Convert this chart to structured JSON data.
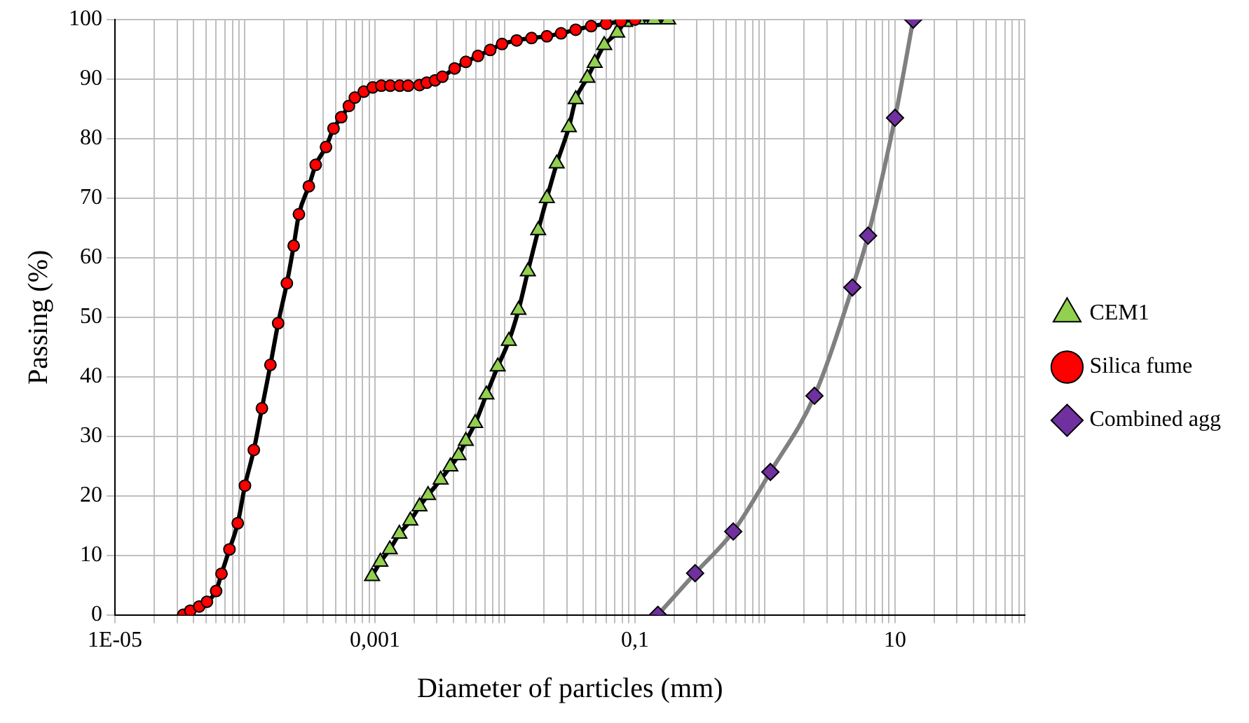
{
  "chart_data": {
    "type": "line",
    "xlabel": "Diameter of particles (mm)",
    "ylabel": "Passing (%)",
    "log": "x",
    "grid": true,
    "legend": "right",
    "xlim": [
      1e-05,
      100
    ],
    "ylim": [
      0,
      100
    ],
    "xticks": [
      {
        "value": 1e-05,
        "label": "1E-05"
      },
      {
        "value": 2e-05,
        "label": null
      },
      {
        "value": 3e-05,
        "label": null
      },
      {
        "value": 4e-05,
        "label": null
      },
      {
        "value": 5e-05,
        "label": null
      },
      {
        "value": 6e-05,
        "label": null
      },
      {
        "value": 7e-05,
        "label": null
      },
      {
        "value": 8e-05,
        "label": null
      },
      {
        "value": 9e-05,
        "label": null
      },
      {
        "value": 0.0001,
        "label": null
      },
      {
        "value": 0.0002,
        "label": null
      },
      {
        "value": 0.0003,
        "label": null
      },
      {
        "value": 0.0004,
        "label": null
      },
      {
        "value": 0.0005,
        "label": null
      },
      {
        "value": 0.0006,
        "label": null
      },
      {
        "value": 0.0007,
        "label": null
      },
      {
        "value": 0.0008,
        "label": null
      },
      {
        "value": 0.0009,
        "label": null
      },
      {
        "value": 0.001,
        "label": "0,001"
      },
      {
        "value": 0.002,
        "label": null
      },
      {
        "value": 0.003,
        "label": null
      },
      {
        "value": 0.004,
        "label": null
      },
      {
        "value": 0.005,
        "label": null
      },
      {
        "value": 0.006,
        "label": null
      },
      {
        "value": 0.007,
        "label": null
      },
      {
        "value": 0.008,
        "label": null
      },
      {
        "value": 0.009,
        "label": null
      },
      {
        "value": 0.01,
        "label": null
      },
      {
        "value": 0.02,
        "label": null
      },
      {
        "value": 0.03,
        "label": null
      },
      {
        "value": 0.04,
        "label": null
      },
      {
        "value": 0.05,
        "label": null
      },
      {
        "value": 0.06,
        "label": null
      },
      {
        "value": 0.07,
        "label": null
      },
      {
        "value": 0.08,
        "label": null
      },
      {
        "value": 0.09,
        "label": null
      },
      {
        "value": 0.1,
        "label": "0,1"
      },
      {
        "value": 0.2,
        "label": null
      },
      {
        "value": 0.3,
        "label": null
      },
      {
        "value": 0.4,
        "label": null
      },
      {
        "value": 0.5,
        "label": null
      },
      {
        "value": 0.6,
        "label": null
      },
      {
        "value": 0.7,
        "label": null
      },
      {
        "value": 0.8,
        "label": null
      },
      {
        "value": 0.9,
        "label": null
      },
      {
        "value": 1,
        "label": null
      },
      {
        "value": 2,
        "label": null
      },
      {
        "value": 3,
        "label": null
      },
      {
        "value": 4,
        "label": null
      },
      {
        "value": 5,
        "label": null
      },
      {
        "value": 6,
        "label": null
      },
      {
        "value": 7,
        "label": null
      },
      {
        "value": 8,
        "label": null
      },
      {
        "value": 9,
        "label": null
      },
      10,
      {
        "value": 20,
        "label": null
      },
      {
        "value": 30,
        "label": null
      },
      {
        "value": 40,
        "label": null
      },
      {
        "value": 50,
        "label": null
      },
      {
        "value": 60,
        "label": null
      },
      {
        "value": 70,
        "label": null
      },
      {
        "value": 80,
        "label": null
      },
      {
        "value": 90,
        "label": null
      },
      {
        "value": 100,
        "label": null
      }
    ],
    "yticks": [
      0,
      10,
      20,
      30,
      40,
      50,
      60,
      70,
      80,
      90,
      100
    ],
    "series": [
      {
        "name": "CEM1",
        "color": "#92d050",
        "marker": "triangle",
        "x": [
          0.00095,
          0.0011,
          0.0013,
          0.00154,
          0.00187,
          0.0022,
          0.00256,
          0.0032,
          0.0038,
          0.0044,
          0.005,
          0.0059,
          0.0072,
          0.0088,
          0.0107,
          0.0127,
          0.015,
          0.018,
          0.021,
          0.025,
          0.031,
          0.035,
          0.043,
          0.049,
          0.058,
          0.073,
          0.084,
          0.106,
          0.14,
          0.18
        ],
        "values": [
          6.5,
          8.9,
          11,
          13.6,
          15.8,
          18.2,
          20.1,
          22.7,
          24.9,
          26.8,
          29.2,
          32.2,
          37,
          41.7,
          46,
          51.2,
          57.7,
          64.6,
          70,
          75.8,
          81.9,
          86.6,
          90.2,
          92.7,
          95.7,
          97.8,
          99.6,
          100,
          100,
          100
        ]
      },
      {
        "name": "Silica fume",
        "color": "#ff0000",
        "marker": "circle",
        "x": [
          3.35e-05,
          3.8e-05,
          4.45e-05,
          5.1e-05,
          6e-05,
          6.6e-05,
          7.6e-05,
          8.8e-05,
          0.0001,
          0.000117,
          0.000135,
          0.000157,
          0.00018,
          0.00021,
          0.000237,
          0.00026,
          0.00031,
          0.00035,
          0.00042,
          0.00048,
          0.00055,
          0.00063,
          0.0007,
          0.00082,
          0.00096,
          0.00112,
          0.00131,
          0.00155,
          0.0018,
          0.0022,
          0.0025,
          0.0029,
          0.0033,
          0.0041,
          0.005,
          0.0062,
          0.0077,
          0.0095,
          0.0123,
          0.016,
          0.021,
          0.027,
          0.035,
          0.046,
          0.06,
          0.078,
          0.1
        ],
        "values": [
          0,
          0.7,
          1.4,
          2.2,
          4,
          6.9,
          11,
          15.4,
          21.7,
          27.7,
          34.7,
          42,
          49,
          55.7,
          62,
          67.3,
          72,
          75.6,
          78.6,
          81.7,
          83.6,
          85.5,
          86.9,
          87.9,
          88.6,
          88.9,
          88.9,
          88.9,
          88.9,
          89,
          89.4,
          89.8,
          90.4,
          91.8,
          92.9,
          93.9,
          94.9,
          95.9,
          96.5,
          96.9,
          97.2,
          97.7,
          98.3,
          98.9,
          99.3,
          99.7,
          100
        ]
      },
      {
        "name": "Combined agg",
        "color": "#7030a0",
        "marker": "diamond",
        "x": [
          0.15,
          0.29,
          0.57,
          1.1,
          2.4,
          4.7,
          6.2,
          10,
          13.8
        ],
        "values": [
          0,
          7,
          14,
          24,
          36.8,
          55,
          63.7,
          83.5,
          100
        ]
      }
    ]
  }
}
